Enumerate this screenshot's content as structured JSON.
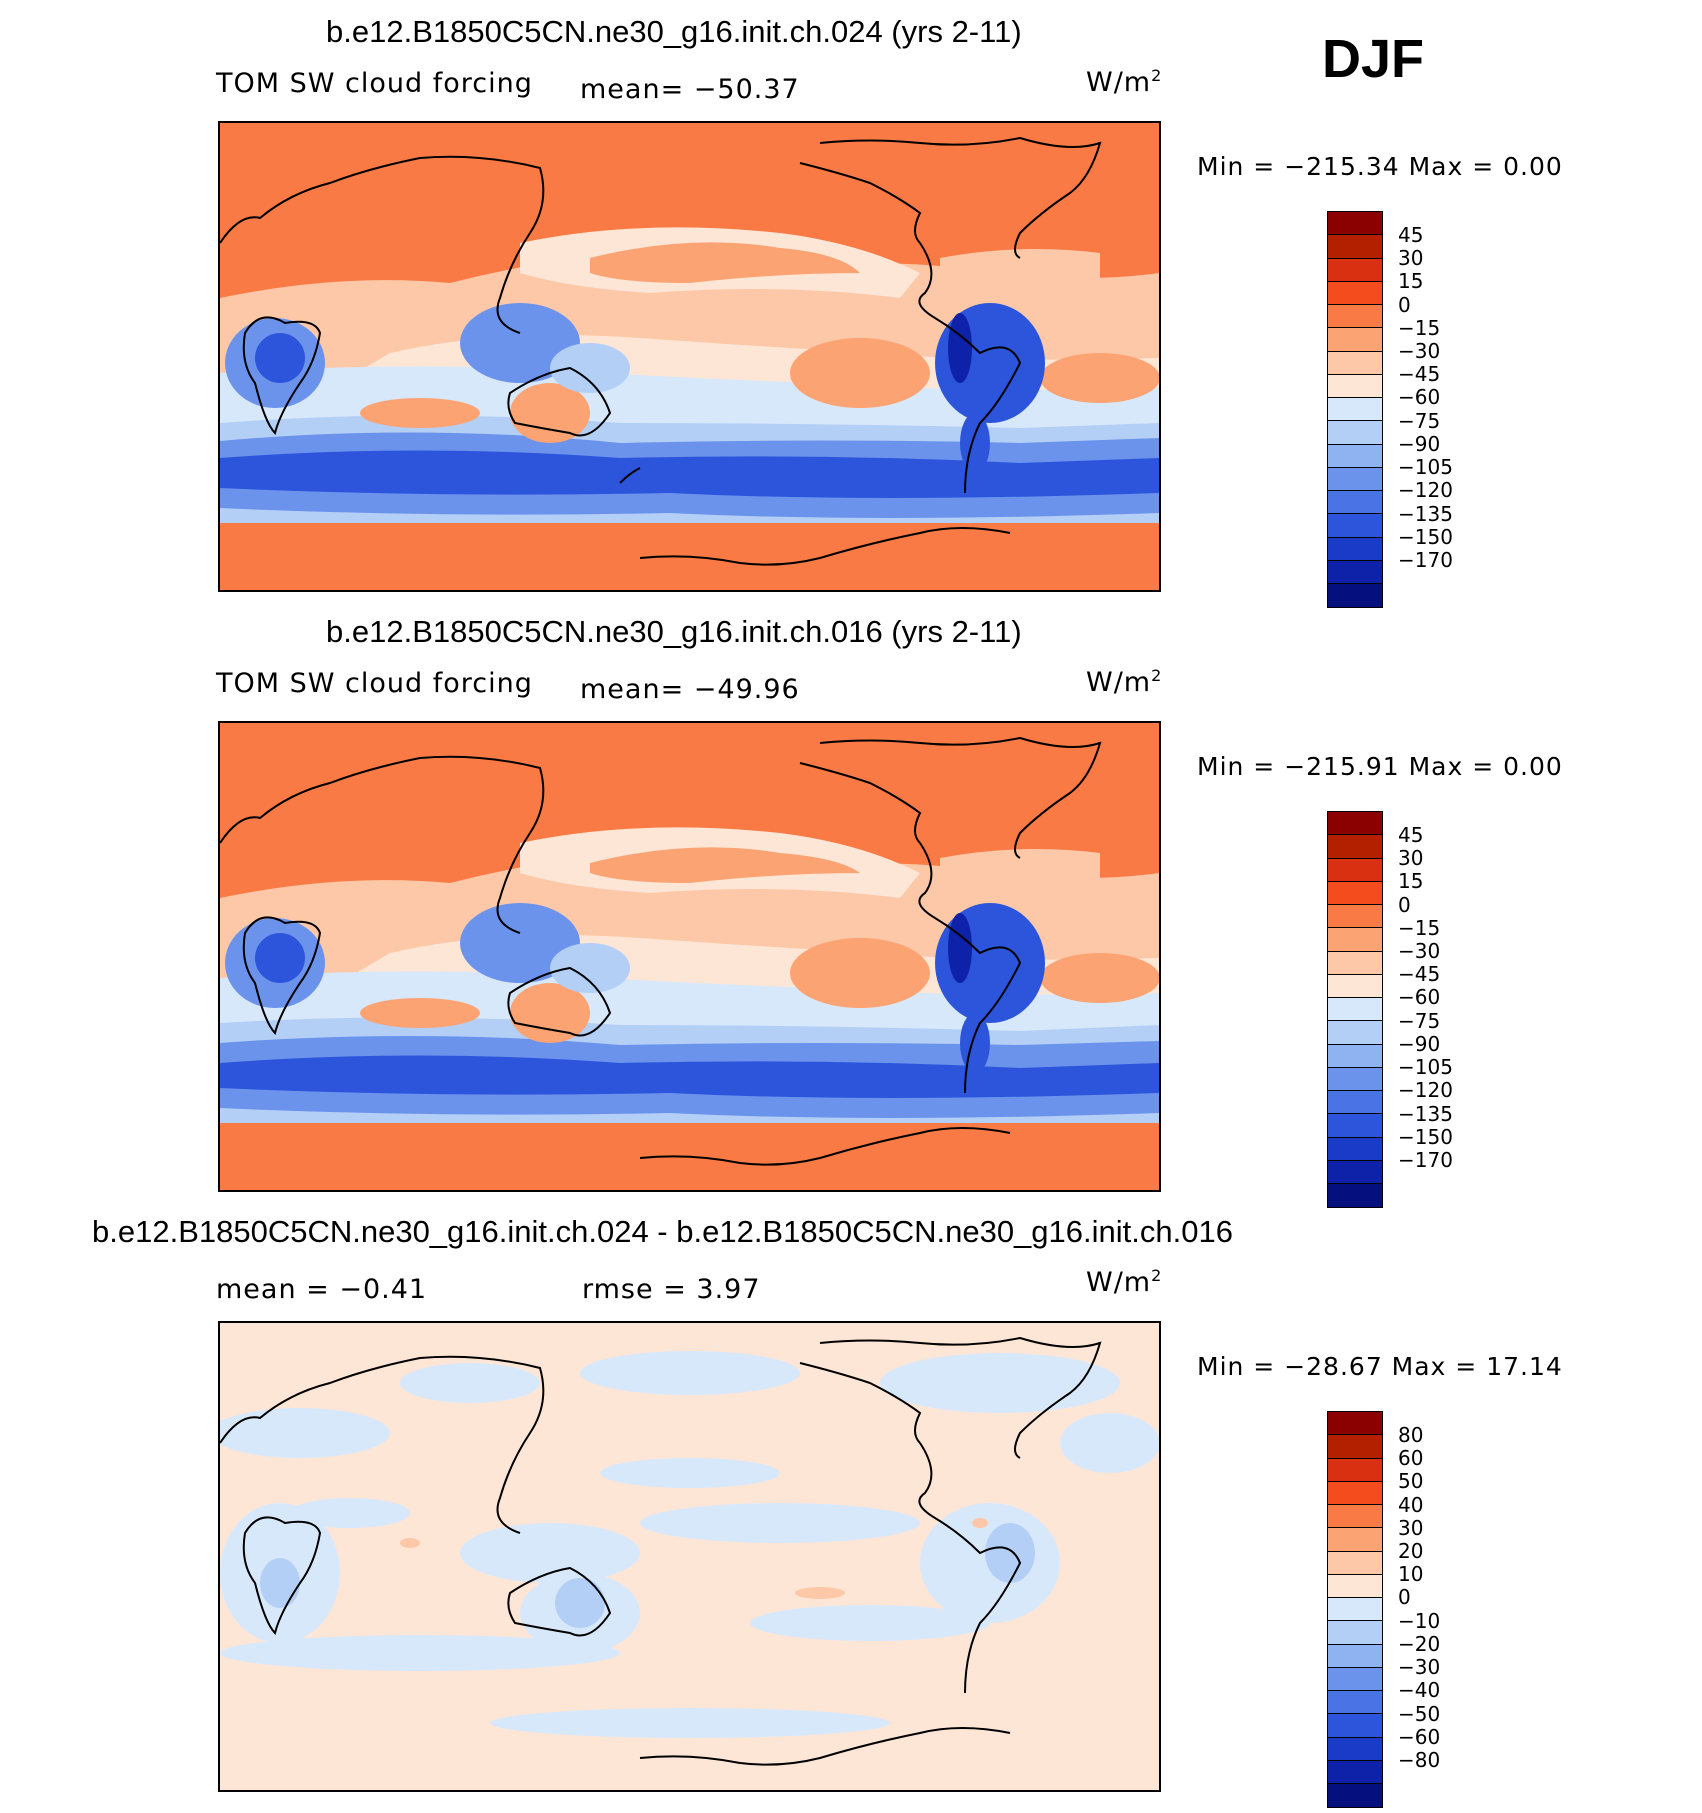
{
  "season": "DJF",
  "panels": [
    {
      "title": "b.e12.B1850C5CN.ne30_g16.init.ch.024 (yrs 2-11)",
      "variable": "TOM SW cloud forcing",
      "stat1": "mean= −50.37",
      "stat2": "",
      "units": "W/m",
      "units_sup": "2",
      "minmax": "Min = −215.34 Max =    0.00",
      "scale": "abs",
      "colorbar_labels": [
        "45",
        "30",
        "15",
        "0",
        "−15",
        "−30",
        "−45",
        "−60",
        "−75",
        "−90",
        "−105",
        "−120",
        "−135",
        "−150",
        "−170"
      ]
    },
    {
      "title": "b.e12.B1850C5CN.ne30_g16.init.ch.016 (yrs 2-11)",
      "variable": "TOM SW cloud forcing",
      "stat1": "mean= −49.96",
      "stat2": "",
      "units": "W/m",
      "units_sup": "2",
      "minmax": "Min = −215.91 Max =    0.00",
      "scale": "abs",
      "colorbar_labels": [
        "45",
        "30",
        "15",
        "0",
        "−15",
        "−30",
        "−45",
        "−60",
        "−75",
        "−90",
        "−105",
        "−120",
        "−135",
        "−150",
        "−170"
      ]
    },
    {
      "title": "b.e12.B1850C5CN.ne30_g16.init.ch.024 - b.e12.B1850C5CN.ne30_g16.init.ch.016",
      "variable": "",
      "stat1": "mean =   −0.41",
      "stat2": "rmse =    3.97",
      "units": "W/m",
      "units_sup": "2",
      "minmax": "Min = −28.67 Max =  17.14",
      "scale": "diff",
      "colorbar_labels": [
        "80",
        "60",
        "50",
        "40",
        "30",
        "20",
        "10",
        "0",
        "−10",
        "−20",
        "−30",
        "−40",
        "−50",
        "−60",
        "−80"
      ]
    }
  ],
  "colorbar_colors": [
    "#8b0000",
    "#b22000",
    "#d83010",
    "#f54c1e",
    "#f97a45",
    "#fba373",
    "#fdc8a8",
    "#fee6d6",
    "#d8e8fb",
    "#b4cff5",
    "#8fb3f0",
    "#6b93ec",
    "#4a74e6",
    "#2d55dc",
    "#1a3ac8",
    "#0d22a8",
    "#05107e"
  ],
  "colors": {
    "land_orange": "#f97a45",
    "light_orange": "#fba373",
    "pale_orange": "#fdc8a8",
    "cream": "#fee6d6",
    "pale_blue": "#d8e8fb",
    "light_blue": "#b4cff5",
    "mid_blue": "#6b93ec",
    "blue": "#2d55dc",
    "dark_blue": "#0d22a8"
  }
}
